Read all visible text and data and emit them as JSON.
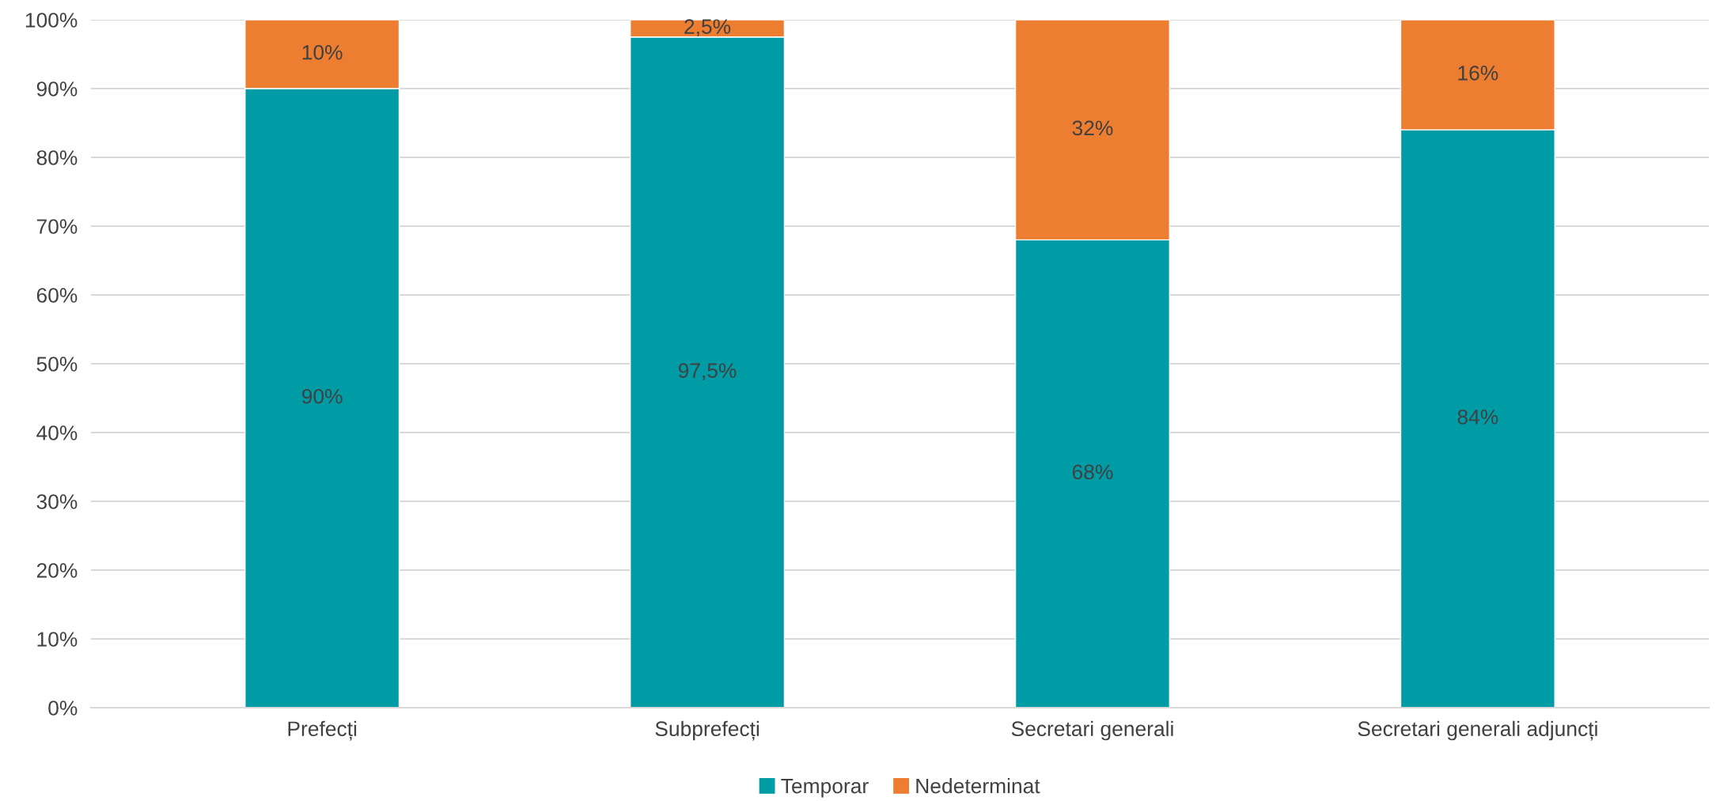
{
  "chart_data": {
    "type": "bar",
    "stacked": true,
    "categories": [
      "Prefecți",
      "Subprefecți",
      "Secretari generali",
      "Secretari generali adjuncți"
    ],
    "series": [
      {
        "name": "Temporar",
        "color": "#009ca6",
        "values": [
          90,
          97.5,
          68,
          84
        ],
        "value_labels": [
          "90%",
          "97,5%",
          "68%",
          "84%"
        ]
      },
      {
        "name": "Nedeterminat",
        "color": "#ed7d31",
        "values": [
          10,
          2.5,
          32,
          16
        ],
        "value_labels": [
          "10%",
          "2,5%",
          "32%",
          "16%"
        ]
      }
    ],
    "ylim": [
      0,
      100
    ],
    "yticks": [
      {
        "value": 0,
        "label": "0%"
      },
      {
        "value": 10,
        "label": "10%"
      },
      {
        "value": 20,
        "label": "20%"
      },
      {
        "value": 30,
        "label": "30%"
      },
      {
        "value": 40,
        "label": "40%"
      },
      {
        "value": 50,
        "label": "50%"
      },
      {
        "value": 60,
        "label": "60%"
      },
      {
        "value": 70,
        "label": "70%"
      },
      {
        "value": 80,
        "label": "80%"
      },
      {
        "value": 90,
        "label": "90%"
      },
      {
        "value": 100,
        "label": "100%"
      }
    ],
    "grid": "y",
    "legend": "bottom"
  }
}
